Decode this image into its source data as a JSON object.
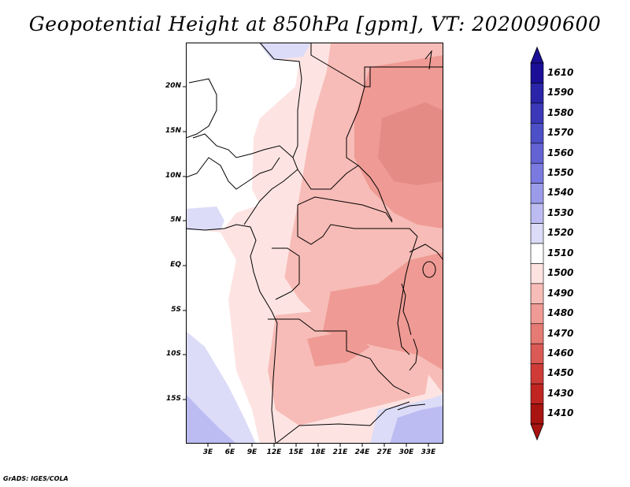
{
  "title": "Geopotential Height at 850hPa [gpm], VT: 2020090600",
  "credit": "GrADS: IGES/COLA",
  "map": {
    "lat_labels": [
      "20N",
      "15N",
      "10N",
      "5N",
      "EQ",
      "5S",
      "10S",
      "15S"
    ],
    "lon_labels": [
      "3E",
      "6E",
      "9E",
      "12E",
      "15E",
      "18E",
      "21E",
      "24E",
      "27E",
      "30E",
      "33E"
    ]
  },
  "colorbar": {
    "labels": [
      "1610",
      "1590",
      "1580",
      "1570",
      "1560",
      "1550",
      "1540",
      "1530",
      "1520",
      "1510",
      "1500",
      "1490",
      "1480",
      "1470",
      "1460",
      "1450",
      "1430",
      "1410"
    ],
    "colors": [
      "#1a0f96",
      "#2a24a8",
      "#3b39b8",
      "#4d4fc7",
      "#6363d4",
      "#7a7ae0",
      "#9b9bea",
      "#bcbcf2",
      "#dcdcf8",
      "#ffffff",
      "#fde2e0",
      "#f7bcb7",
      "#ef9a94",
      "#e67a74",
      "#db5a55",
      "#cf3c38",
      "#c02521",
      "#a81410"
    ]
  }
}
